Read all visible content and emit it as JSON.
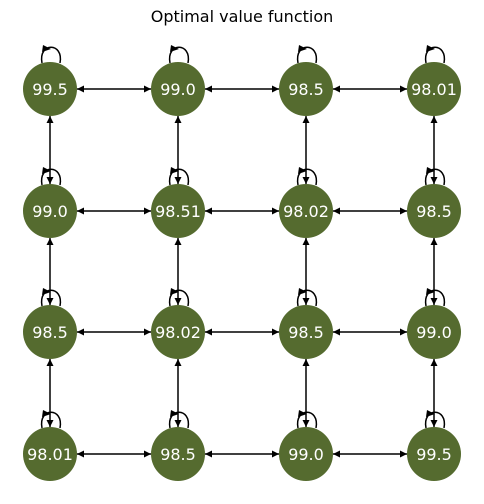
{
  "title": "Optimal value function",
  "colors": {
    "node": "#556b2f",
    "edge": "#000000",
    "label": "#ffffff"
  },
  "grid": {
    "rows": 4,
    "cols": 4,
    "values": [
      [
        "99.5",
        "99.0",
        "98.5",
        "98.01"
      ],
      [
        "99.0",
        "98.51",
        "98.02",
        "98.5"
      ],
      [
        "98.5",
        "98.02",
        "98.5",
        "99.0"
      ],
      [
        "98.01",
        "98.5",
        "99.0",
        "99.5"
      ]
    ]
  },
  "edges": {
    "directed": true,
    "connect_neighbors": "4-neighbour grid, bidirectional",
    "self_loops": true
  }
}
